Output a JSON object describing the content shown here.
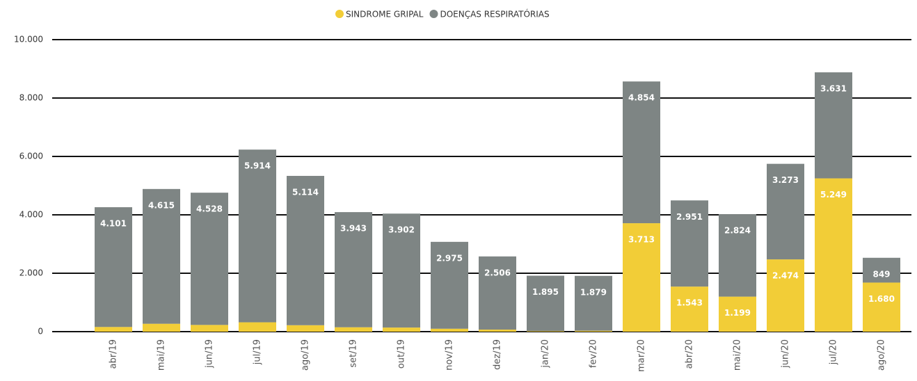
{
  "chart_data": {
    "type": "stacked_bar",
    "categories": [
      "abr/19",
      "mai/19",
      "jun/19",
      "jul/19",
      "ago/19",
      "set/19",
      "out/19",
      "nov/19",
      "dez/19",
      "jan/20",
      "fev/20",
      "mar/20",
      "abr/20",
      "mai/20",
      "jun/20",
      "jul/20",
      "ago/20"
    ],
    "series": [
      {
        "name": "SINDROME GRIPAL",
        "color": "#f2cd37",
        "values": [
          160,
          270,
          230,
          320,
          220,
          150,
          140,
          100,
          70,
          20,
          30,
          3713,
          1543,
          1199,
          2474,
          5249,
          1680
        ],
        "value_labels": [
          null,
          null,
          null,
          null,
          null,
          null,
          null,
          null,
          null,
          null,
          null,
          "3.713",
          "1.543",
          "1.199",
          "2.474",
          "5.249",
          "1.680"
        ]
      },
      {
        "name": "DOENÇAS RESPIRATÓRIAS",
        "color": "#7e8584",
        "values": [
          4101,
          4615,
          4528,
          5914,
          5114,
          3943,
          3902,
          2975,
          2506,
          1895,
          1879,
          4854,
          2951,
          2824,
          3273,
          3631,
          849
        ],
        "value_labels": [
          "4.101",
          "4.615",
          "4.528",
          "5.914",
          "5.114",
          "3.943",
          "3.902",
          "2.975",
          "2.506",
          "1.895",
          "1.879",
          "4.854",
          "2.951",
          "2.824",
          "3.273",
          "3.631",
          "849"
        ]
      }
    ],
    "ylim": [
      0,
      10000
    ],
    "yticks": [
      0,
      {
        "value": 2000,
        "label": "2.000"
      },
      {
        "value": 4000,
        "label": "4.000"
      },
      {
        "value": 6000,
        "label": "6.000"
      },
      {
        "value": 8000,
        "label": "8.000"
      },
      {
        "value": 10000,
        "label": "10.000"
      }
    ],
    "grid": true,
    "legend": "top"
  }
}
